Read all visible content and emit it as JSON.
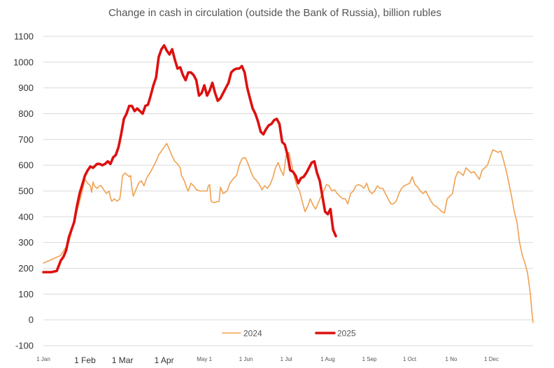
{
  "chart_data": {
    "type": "line",
    "title": "Change in cash in circulation (outside the Bank of Russia), billion rubles",
    "xlabel": "",
    "ylabel": "",
    "ylim": [
      -100,
      1100
    ],
    "yticks": [
      -100,
      0,
      100,
      200,
      300,
      400,
      500,
      600,
      700,
      800,
      900,
      1000,
      1100
    ],
    "xlim": [
      0,
      365
    ],
    "xticks": [
      {
        "day": 0,
        "label": "1 Jan",
        "size": "small"
      },
      {
        "day": 31,
        "label": "1 Feb",
        "size": "big"
      },
      {
        "day": 59,
        "label": "1 Mar",
        "size": "big"
      },
      {
        "day": 90,
        "label": "1 Apr",
        "size": "big"
      },
      {
        "day": 120,
        "label": "May 1",
        "size": "small"
      },
      {
        "day": 151,
        "label": "1 Jun",
        "size": "small"
      },
      {
        "day": 181,
        "label": "1 Jul",
        "size": "small"
      },
      {
        "day": 212,
        "label": "1 Aug",
        "size": "small"
      },
      {
        "day": 243,
        "label": "1 Sep",
        "size": "small"
      },
      {
        "day": 273,
        "label": "1 Oct",
        "size": "small"
      },
      {
        "day": 304,
        "label": "1 No",
        "size": "small"
      },
      {
        "day": 334,
        "label": "1 Dec",
        "size": "small"
      }
    ],
    "grid": "horizontal",
    "legend": "bottom-center",
    "series": [
      {
        "name": "2024",
        "color": "#f0a050",
        "width": 1.6,
        "points": [
          [
            0,
            220
          ],
          [
            13,
            250
          ],
          [
            19,
            300
          ],
          [
            25,
            420
          ],
          [
            29,
            500
          ],
          [
            31,
            545
          ],
          [
            33,
            530
          ],
          [
            35,
            520
          ],
          [
            36,
            495
          ],
          [
            37,
            535
          ],
          [
            38,
            520
          ],
          [
            40,
            510
          ],
          [
            42,
            520
          ],
          [
            43,
            520
          ],
          [
            45,
            505
          ],
          [
            47,
            490
          ],
          [
            49,
            500
          ],
          [
            50,
            475
          ],
          [
            51,
            460
          ],
          [
            53,
            470
          ],
          [
            55,
            460
          ],
          [
            57,
            470
          ],
          [
            58,
            510
          ],
          [
            59,
            560
          ],
          [
            61,
            570
          ],
          [
            64,
            555
          ],
          [
            65,
            560
          ],
          [
            66,
            510
          ],
          [
            67,
            480
          ],
          [
            69,
            505
          ],
          [
            71,
            530
          ],
          [
            73,
            540
          ],
          [
            75,
            520
          ],
          [
            77,
            550
          ],
          [
            80,
            575
          ],
          [
            82,
            595
          ],
          [
            84,
            615
          ],
          [
            86,
            640
          ],
          [
            88,
            655
          ],
          [
            90,
            670
          ],
          [
            92,
            685
          ],
          [
            94,
            660
          ],
          [
            96,
            635
          ],
          [
            98,
            615
          ],
          [
            100,
            605
          ],
          [
            102,
            590
          ],
          [
            103,
            560
          ],
          [
            105,
            540
          ],
          [
            107,
            510
          ],
          [
            108,
            500
          ],
          [
            110,
            530
          ],
          [
            112,
            520
          ],
          [
            114,
            505
          ],
          [
            117,
            500
          ],
          [
            120,
            500
          ],
          [
            122,
            500
          ],
          [
            123,
            520
          ],
          [
            124,
            525
          ],
          [
            125,
            460
          ],
          [
            127,
            455
          ],
          [
            131,
            460
          ],
          [
            132,
            515
          ],
          [
            134,
            490
          ],
          [
            137,
            500
          ],
          [
            139,
            530
          ],
          [
            142,
            550
          ],
          [
            144,
            560
          ],
          [
            146,
            600
          ],
          [
            148,
            625
          ],
          [
            150,
            630
          ],
          [
            151,
            625
          ],
          [
            153,
            600
          ],
          [
            155,
            570
          ],
          [
            157,
            550
          ],
          [
            159,
            540
          ],
          [
            161,
            525
          ],
          [
            163,
            505
          ],
          [
            165,
            520
          ],
          [
            167,
            510
          ],
          [
            169,
            525
          ],
          [
            171,
            550
          ],
          [
            173,
            590
          ],
          [
            175,
            610
          ],
          [
            177,
            580
          ],
          [
            179,
            560
          ],
          [
            181,
            640
          ],
          [
            183,
            650
          ],
          [
            185,
            605
          ],
          [
            187,
            555
          ],
          [
            189,
            520
          ],
          [
            191,
            500
          ],
          [
            193,
            460
          ],
          [
            195,
            420
          ],
          [
            197,
            440
          ],
          [
            199,
            470
          ],
          [
            201,
            445
          ],
          [
            203,
            430
          ],
          [
            205,
            455
          ],
          [
            207,
            480
          ],
          [
            209,
            500
          ],
          [
            211,
            525
          ],
          [
            213,
            520
          ],
          [
            215,
            500
          ],
          [
            217,
            505
          ],
          [
            219,
            490
          ],
          [
            221,
            480
          ],
          [
            223,
            470
          ],
          [
            225,
            470
          ],
          [
            227,
            450
          ],
          [
            229,
            490
          ],
          [
            231,
            500
          ],
          [
            233,
            520
          ],
          [
            235,
            525
          ],
          [
            237,
            520
          ],
          [
            239,
            510
          ],
          [
            241,
            530
          ],
          [
            243,
            500
          ],
          [
            245,
            490
          ],
          [
            247,
            500
          ],
          [
            249,
            520
          ],
          [
            251,
            510
          ],
          [
            253,
            510
          ],
          [
            255,
            490
          ],
          [
            257,
            470
          ],
          [
            259,
            450
          ],
          [
            261,
            450
          ],
          [
            263,
            460
          ],
          [
            265,
            490
          ],
          [
            267,
            510
          ],
          [
            269,
            520
          ],
          [
            271,
            525
          ],
          [
            273,
            530
          ],
          [
            275,
            555
          ],
          [
            277,
            525
          ],
          [
            279,
            515
          ],
          [
            281,
            500
          ],
          [
            283,
            490
          ],
          [
            285,
            500
          ],
          [
            287,
            480
          ],
          [
            289,
            460
          ],
          [
            291,
            445
          ],
          [
            293,
            440
          ],
          [
            295,
            430
          ],
          [
            297,
            420
          ],
          [
            299,
            415
          ],
          [
            301,
            470
          ],
          [
            303,
            480
          ],
          [
            305,
            490
          ],
          [
            307,
            550
          ],
          [
            309,
            575
          ],
          [
            311,
            570
          ],
          [
            313,
            560
          ],
          [
            315,
            590
          ],
          [
            317,
            580
          ],
          [
            319,
            570
          ],
          [
            321,
            575
          ],
          [
            323,
            560
          ],
          [
            325,
            545
          ],
          [
            327,
            580
          ],
          [
            329,
            590
          ],
          [
            331,
            600
          ],
          [
            333,
            630
          ],
          [
            335,
            660
          ],
          [
            337,
            655
          ],
          [
            339,
            650
          ],
          [
            341,
            655
          ],
          [
            343,
            620
          ],
          [
            345,
            580
          ],
          [
            347,
            530
          ],
          [
            349,
            480
          ],
          [
            351,
            420
          ],
          [
            353,
            380
          ],
          [
            355,
            300
          ],
          [
            357,
            250
          ],
          [
            359,
            220
          ],
          [
            361,
            180
          ],
          [
            363,
            100
          ],
          [
            364,
            40
          ],
          [
            365,
            -10
          ]
        ]
      },
      {
        "name": "2025",
        "color": "#dd1010",
        "width": 3.6,
        "points": [
          [
            0,
            185
          ],
          [
            6,
            185
          ],
          [
            10,
            190
          ],
          [
            13,
            230
          ],
          [
            15,
            245
          ],
          [
            17,
            270
          ],
          [
            19,
            320
          ],
          [
            23,
            380
          ],
          [
            25,
            440
          ],
          [
            27,
            490
          ],
          [
            31,
            560
          ],
          [
            33,
            580
          ],
          [
            35,
            595
          ],
          [
            37,
            590
          ],
          [
            40,
            605
          ],
          [
            42,
            605
          ],
          [
            44,
            600
          ],
          [
            46,
            605
          ],
          [
            48,
            615
          ],
          [
            50,
            605
          ],
          [
            52,
            630
          ],
          [
            54,
            640
          ],
          [
            56,
            670
          ],
          [
            58,
            720
          ],
          [
            60,
            780
          ],
          [
            62,
            800
          ],
          [
            64,
            830
          ],
          [
            66,
            830
          ],
          [
            68,
            810
          ],
          [
            70,
            820
          ],
          [
            72,
            810
          ],
          [
            74,
            800
          ],
          [
            76,
            830
          ],
          [
            78,
            835
          ],
          [
            80,
            870
          ],
          [
            82,
            910
          ],
          [
            84,
            940
          ],
          [
            86,
            1020
          ],
          [
            88,
            1050
          ],
          [
            90,
            1065
          ],
          [
            92,
            1045
          ],
          [
            94,
            1030
          ],
          [
            96,
            1050
          ],
          [
            98,
            1010
          ],
          [
            100,
            975
          ],
          [
            102,
            980
          ],
          [
            104,
            950
          ],
          [
            106,
            930
          ],
          [
            108,
            960
          ],
          [
            110,
            960
          ],
          [
            112,
            950
          ],
          [
            114,
            930
          ],
          [
            116,
            870
          ],
          [
            118,
            880
          ],
          [
            120,
            910
          ],
          [
            122,
            870
          ],
          [
            124,
            890
          ],
          [
            126,
            920
          ],
          [
            128,
            880
          ],
          [
            130,
            850
          ],
          [
            132,
            860
          ],
          [
            134,
            880
          ],
          [
            136,
            900
          ],
          [
            138,
            920
          ],
          [
            140,
            960
          ],
          [
            142,
            970
          ],
          [
            144,
            975
          ],
          [
            146,
            975
          ],
          [
            148,
            985
          ],
          [
            150,
            960
          ],
          [
            152,
            900
          ],
          [
            154,
            860
          ],
          [
            156,
            820
          ],
          [
            158,
            800
          ],
          [
            160,
            770
          ],
          [
            162,
            730
          ],
          [
            164,
            720
          ],
          [
            166,
            740
          ],
          [
            168,
            755
          ],
          [
            170,
            760
          ],
          [
            172,
            775
          ],
          [
            174,
            780
          ],
          [
            176,
            760
          ],
          [
            178,
            690
          ],
          [
            180,
            680
          ],
          [
            182,
            640
          ],
          [
            184,
            580
          ],
          [
            186,
            575
          ],
          [
            188,
            560
          ],
          [
            190,
            530
          ],
          [
            192,
            550
          ],
          [
            194,
            555
          ],
          [
            196,
            570
          ],
          [
            198,
            590
          ],
          [
            200,
            610
          ],
          [
            202,
            615
          ],
          [
            204,
            570
          ],
          [
            206,
            540
          ],
          [
            208,
            480
          ],
          [
            210,
            420
          ],
          [
            212,
            410
          ],
          [
            214,
            430
          ],
          [
            216,
            350
          ],
          [
            218,
            325
          ]
        ]
      }
    ]
  }
}
